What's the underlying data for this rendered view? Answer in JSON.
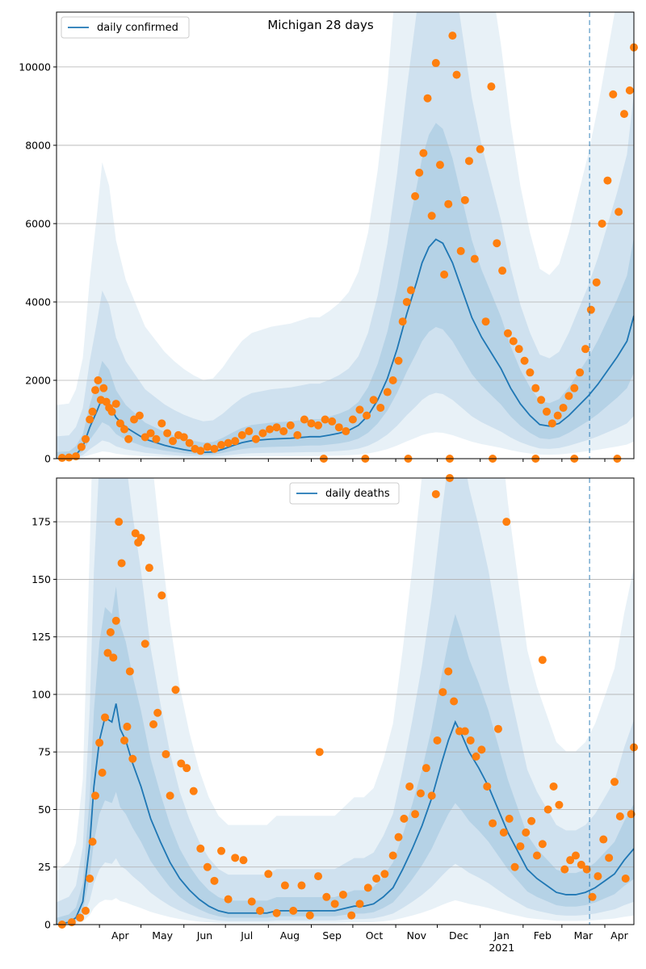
{
  "chart_data": [
    {
      "type": "line",
      "title": "Michigan 28 days",
      "xlabel": "",
      "ylabel": "",
      "legend": "top-left",
      "legend_label": "daily confirmed",
      "grid": "horizontal",
      "x_range": [
        "2020-03-01",
        "2021-04-22"
      ],
      "ylim": [
        0,
        11400
      ],
      "yticks": [
        0,
        2000,
        4000,
        6000,
        8000,
        10000
      ],
      "forecast_start": "2021-03-21",
      "line": {
        "x": [
          "2020-03-01",
          "2020-03-10",
          "2020-03-15",
          "2020-03-20",
          "2020-03-25",
          "2020-03-30",
          "2020-04-03",
          "2020-04-08",
          "2020-04-13",
          "2020-04-20",
          "2020-04-27",
          "2020-05-04",
          "2020-05-11",
          "2020-05-18",
          "2020-05-25",
          "2020-06-01",
          "2020-06-08",
          "2020-06-15",
          "2020-06-22",
          "2020-06-29",
          "2020-07-06",
          "2020-07-13",
          "2020-07-20",
          "2020-07-27",
          "2020-08-03",
          "2020-08-10",
          "2020-08-17",
          "2020-08-24",
          "2020-08-31",
          "2020-09-07",
          "2020-09-14",
          "2020-09-21",
          "2020-09-28",
          "2020-10-05",
          "2020-10-12",
          "2020-10-19",
          "2020-10-26",
          "2020-11-02",
          "2020-11-09",
          "2020-11-16",
          "2020-11-20",
          "2020-11-25",
          "2020-11-30",
          "2020-12-05",
          "2020-12-12",
          "2020-12-19",
          "2020-12-26",
          "2021-01-02",
          "2021-01-09",
          "2021-01-16",
          "2021-01-23",
          "2021-01-30",
          "2021-02-06",
          "2021-02-13",
          "2021-02-20",
          "2021-02-27",
          "2021-03-06",
          "2021-03-13",
          "2021-03-20",
          "2021-03-27",
          "2021-04-03",
          "2021-04-10",
          "2021-04-17",
          "2021-04-22"
        ],
        "y": [
          0,
          10,
          100,
          300,
          800,
          1200,
          1550,
          1400,
          1050,
          800,
          650,
          500,
          420,
          340,
          280,
          230,
          190,
          160,
          170,
          240,
          330,
          410,
          460,
          480,
          500,
          510,
          520,
          540,
          560,
          560,
          600,
          650,
          720,
          850,
          1100,
          1500,
          2050,
          2800,
          3700,
          4500,
          5000,
          5400,
          5600,
          5500,
          5000,
          4300,
          3600,
          3100,
          2700,
          2300,
          1800,
          1400,
          1100,
          870,
          830,
          900,
          1100,
          1350,
          1600,
          1900,
          2250,
          2600,
          3000,
          3650
        ]
      },
      "scatter": {
        "x": [
          "2020-03-05",
          "2020-03-10",
          "2020-03-15",
          "2020-03-19",
          "2020-03-22",
          "2020-03-25",
          "2020-03-27",
          "2020-03-29",
          "2020-03-31",
          "2020-04-02",
          "2020-04-04",
          "2020-04-06",
          "2020-04-08",
          "2020-04-10",
          "2020-04-13",
          "2020-04-16",
          "2020-04-19",
          "2020-04-22",
          "2020-04-26",
          "2020-04-30",
          "2020-05-04",
          "2020-05-08",
          "2020-05-12",
          "2020-05-16",
          "2020-05-20",
          "2020-05-24",
          "2020-05-28",
          "2020-06-01",
          "2020-06-05",
          "2020-06-09",
          "2020-06-13",
          "2020-06-18",
          "2020-06-23",
          "2020-06-28",
          "2020-07-03",
          "2020-07-08",
          "2020-07-13",
          "2020-07-18",
          "2020-07-23",
          "2020-07-28",
          "2020-08-02",
          "2020-08-07",
          "2020-08-12",
          "2020-08-17",
          "2020-08-22",
          "2020-08-27",
          "2020-09-01",
          "2020-09-06",
          "2020-09-11",
          "2020-09-16",
          "2020-09-21",
          "2020-09-26",
          "2020-10-01",
          "2020-10-06",
          "2020-10-11",
          "2020-10-16",
          "2020-10-21",
          "2020-10-26",
          "2020-10-30",
          "2020-11-03",
          "2020-11-06",
          "2020-11-09",
          "2020-11-12",
          "2020-11-15",
          "2020-11-18",
          "2020-11-21",
          "2020-11-24",
          "2020-11-27",
          "2020-11-30",
          "2020-12-03",
          "2020-12-06",
          "2020-12-09",
          "2020-12-12",
          "2020-12-15",
          "2020-12-18",
          "2020-12-21",
          "2020-12-24",
          "2020-12-28",
          "2021-01-01",
          "2021-01-05",
          "2021-01-09",
          "2021-01-13",
          "2021-01-17",
          "2021-01-21",
          "2021-01-25",
          "2021-01-29",
          "2021-02-02",
          "2021-02-06",
          "2021-02-10",
          "2021-02-14",
          "2021-02-18",
          "2021-02-22",
          "2021-02-26",
          "2021-03-02",
          "2021-03-06",
          "2021-03-10",
          "2021-03-14",
          "2021-03-18",
          "2021-03-22",
          "2021-03-26",
          "2021-03-30",
          "2021-04-03",
          "2021-04-07",
          "2021-04-11",
          "2021-04-15",
          "2021-04-19",
          "2021-04-22",
          "2020-09-10",
          "2020-10-10",
          "2020-11-10",
          "2020-12-10",
          "2021-01-10",
          "2021-02-10",
          "2021-03-10",
          "2021-04-10"
        ],
        "y": [
          20,
          30,
          60,
          300,
          500,
          1000,
          1200,
          1750,
          2000,
          1500,
          1800,
          1450,
          1300,
          1200,
          1400,
          900,
          750,
          500,
          1000,
          1100,
          550,
          650,
          500,
          900,
          650,
          450,
          600,
          550,
          400,
          250,
          200,
          300,
          250,
          350,
          400,
          450,
          600,
          700,
          500,
          650,
          750,
          800,
          700,
          850,
          600,
          1000,
          900,
          850,
          1000,
          950,
          800,
          700,
          1000,
          1250,
          1100,
          1500,
          1300,
          1700,
          2000,
          2500,
          3500,
          4000,
          4300,
          6700,
          7300,
          7800,
          9200,
          6200,
          10100,
          7500,
          4700,
          6500,
          10800,
          9800,
          5300,
          6600,
          7600,
          5100,
          7900,
          3500,
          9500,
          5500,
          4800,
          3200,
          3000,
          2800,
          2500,
          2200,
          1800,
          1500,
          1200,
          900,
          1100,
          1300,
          1600,
          1800,
          2200,
          2800,
          3800,
          4500,
          6000,
          7100,
          9300,
          6300,
          8800,
          9400,
          10500,
          0,
          0,
          0,
          0,
          0,
          0,
          0,
          0
        ]
      }
    },
    {
      "type": "line",
      "title": "",
      "xlabel": "",
      "ylabel": "",
      "legend": "top-center",
      "legend_label": "daily deaths",
      "grid": "horizontal",
      "x_range": [
        "2020-03-01",
        "2021-04-22"
      ],
      "ylim": [
        0,
        194
      ],
      "yticks": [
        0,
        25,
        50,
        75,
        100,
        125,
        150,
        175
      ],
      "xticks": [
        "Apr",
        "May",
        "Jun",
        "Jul",
        "Aug",
        "Sep",
        "Oct",
        "Nov",
        "Dec",
        "Jan",
        "Feb",
        "Mar",
        "Apr"
      ],
      "xtick_year": "2021",
      "forecast_start": "2021-03-21",
      "line": {
        "x": [
          "2020-03-01",
          "2020-03-10",
          "2020-03-15",
          "2020-03-20",
          "2020-03-25",
          "2020-03-28",
          "2020-04-01",
          "2020-04-05",
          "2020-04-10",
          "2020-04-13",
          "2020-04-16",
          "2020-04-20",
          "2020-04-25",
          "2020-05-01",
          "2020-05-08",
          "2020-05-15",
          "2020-05-22",
          "2020-05-29",
          "2020-06-05",
          "2020-06-12",
          "2020-06-19",
          "2020-06-26",
          "2020-07-03",
          "2020-07-10",
          "2020-07-17",
          "2020-07-24",
          "2020-07-31",
          "2020-08-07",
          "2020-08-14",
          "2020-08-21",
          "2020-08-28",
          "2020-09-04",
          "2020-09-11",
          "2020-09-18",
          "2020-09-25",
          "2020-10-02",
          "2020-10-09",
          "2020-10-16",
          "2020-10-23",
          "2020-10-30",
          "2020-11-06",
          "2020-11-13",
          "2020-11-20",
          "2020-11-27",
          "2020-12-04",
          "2020-12-09",
          "2020-12-14",
          "2020-12-19",
          "2020-12-24",
          "2020-12-31",
          "2021-01-07",
          "2021-01-14",
          "2021-01-21",
          "2021-01-28",
          "2021-02-04",
          "2021-02-11",
          "2021-02-18",
          "2021-02-25",
          "2021-03-04",
          "2021-03-11",
          "2021-03-18",
          "2021-03-25",
          "2021-04-01",
          "2021-04-08",
          "2021-04-15",
          "2021-04-22"
        ],
        "y": [
          0,
          1,
          3,
          10,
          35,
          60,
          80,
          90,
          88,
          96,
          85,
          80,
          70,
          60,
          46,
          36,
          27,
          20,
          15,
          11,
          8,
          6,
          5,
          5,
          5,
          5,
          5,
          6,
          6,
          6,
          6,
          6,
          6,
          6,
          7,
          8,
          8,
          9,
          12,
          16,
          24,
          33,
          43,
          55,
          70,
          80,
          88,
          82,
          75,
          68,
          60,
          50,
          40,
          32,
          24,
          20,
          17,
          14,
          13,
          13,
          14,
          16,
          19,
          22,
          28,
          33
        ]
      },
      "scatter": {
        "x": [
          "2020-03-05",
          "2020-03-12",
          "2020-03-18",
          "2020-03-22",
          "2020-03-25",
          "2020-03-27",
          "2020-03-29",
          "2020-04-01",
          "2020-04-03",
          "2020-04-05",
          "2020-04-07",
          "2020-04-09",
          "2020-04-11",
          "2020-04-13",
          "2020-04-15",
          "2020-04-17",
          "2020-04-19",
          "2020-04-21",
          "2020-04-23",
          "2020-04-25",
          "2020-04-27",
          "2020-04-29",
          "2020-05-01",
          "2020-05-04",
          "2020-05-07",
          "2020-05-10",
          "2020-05-13",
          "2020-05-16",
          "2020-05-19",
          "2020-05-22",
          "2020-05-26",
          "2020-05-30",
          "2020-06-03",
          "2020-06-08",
          "2020-06-13",
          "2020-06-18",
          "2020-06-23",
          "2020-06-28",
          "2020-07-03",
          "2020-07-08",
          "2020-07-14",
          "2020-07-20",
          "2020-07-26",
          "2020-08-01",
          "2020-08-07",
          "2020-08-13",
          "2020-08-19",
          "2020-08-25",
          "2020-08-31",
          "2020-09-06",
          "2020-09-12",
          "2020-09-18",
          "2020-09-24",
          "2020-09-30",
          "2020-10-06",
          "2020-10-12",
          "2020-10-18",
          "2020-10-24",
          "2020-10-30",
          "2020-11-03",
          "2020-11-07",
          "2020-11-11",
          "2020-11-15",
          "2020-11-19",
          "2020-11-23",
          "2020-11-27",
          "2020-12-01",
          "2020-12-05",
          "2020-12-09",
          "2020-12-13",
          "2020-12-17",
          "2020-12-21",
          "2020-12-25",
          "2020-12-29",
          "2021-01-02",
          "2021-01-06",
          "2021-01-10",
          "2021-01-14",
          "2021-01-18",
          "2021-01-22",
          "2021-01-26",
          "2021-01-30",
          "2021-02-03",
          "2021-02-07",
          "2021-02-11",
          "2021-02-15",
          "2021-02-19",
          "2021-02-23",
          "2021-02-27",
          "2021-03-03",
          "2021-03-07",
          "2021-03-11",
          "2021-03-15",
          "2021-03-19",
          "2021-03-23",
          "2021-03-27",
          "2021-03-31",
          "2021-04-04",
          "2021-04-08",
          "2021-04-12",
          "2021-04-16",
          "2021-04-20",
          "2021-04-22",
          "2020-09-07",
          "2020-11-30",
          "2020-12-10",
          "2021-01-20",
          "2021-02-15"
        ],
        "y": [
          0,
          1,
          3,
          6,
          20,
          36,
          56,
          79,
          66,
          90,
          118,
          127,
          116,
          132,
          175,
          157,
          80,
          86,
          110,
          72,
          170,
          166,
          168,
          122,
          155,
          87,
          92,
          143,
          74,
          56,
          102,
          70,
          68,
          58,
          33,
          25,
          19,
          32,
          11,
          29,
          28,
          10,
          6,
          22,
          5,
          17,
          6,
          17,
          4,
          21,
          12,
          9,
          13,
          4,
          9,
          16,
          20,
          22,
          30,
          38,
          46,
          60,
          48,
          57,
          68,
          56,
          80,
          101,
          110,
          97,
          84,
          84,
          80,
          73,
          76,
          60,
          44,
          85,
          40,
          46,
          25,
          34,
          40,
          45,
          30,
          35,
          50,
          60,
          52,
          24,
          28,
          30,
          26,
          24,
          12,
          21,
          37,
          29,
          62,
          47,
          20,
          48,
          77,
          75,
          187,
          194,
          175,
          115
        ]
      }
    }
  ],
  "colors": {
    "line": "#1f77b4",
    "scatter": "#ff7f0e",
    "band": "#1f77b4",
    "grid": "#b0b0b0",
    "forecast_line": "#1f77b4"
  }
}
